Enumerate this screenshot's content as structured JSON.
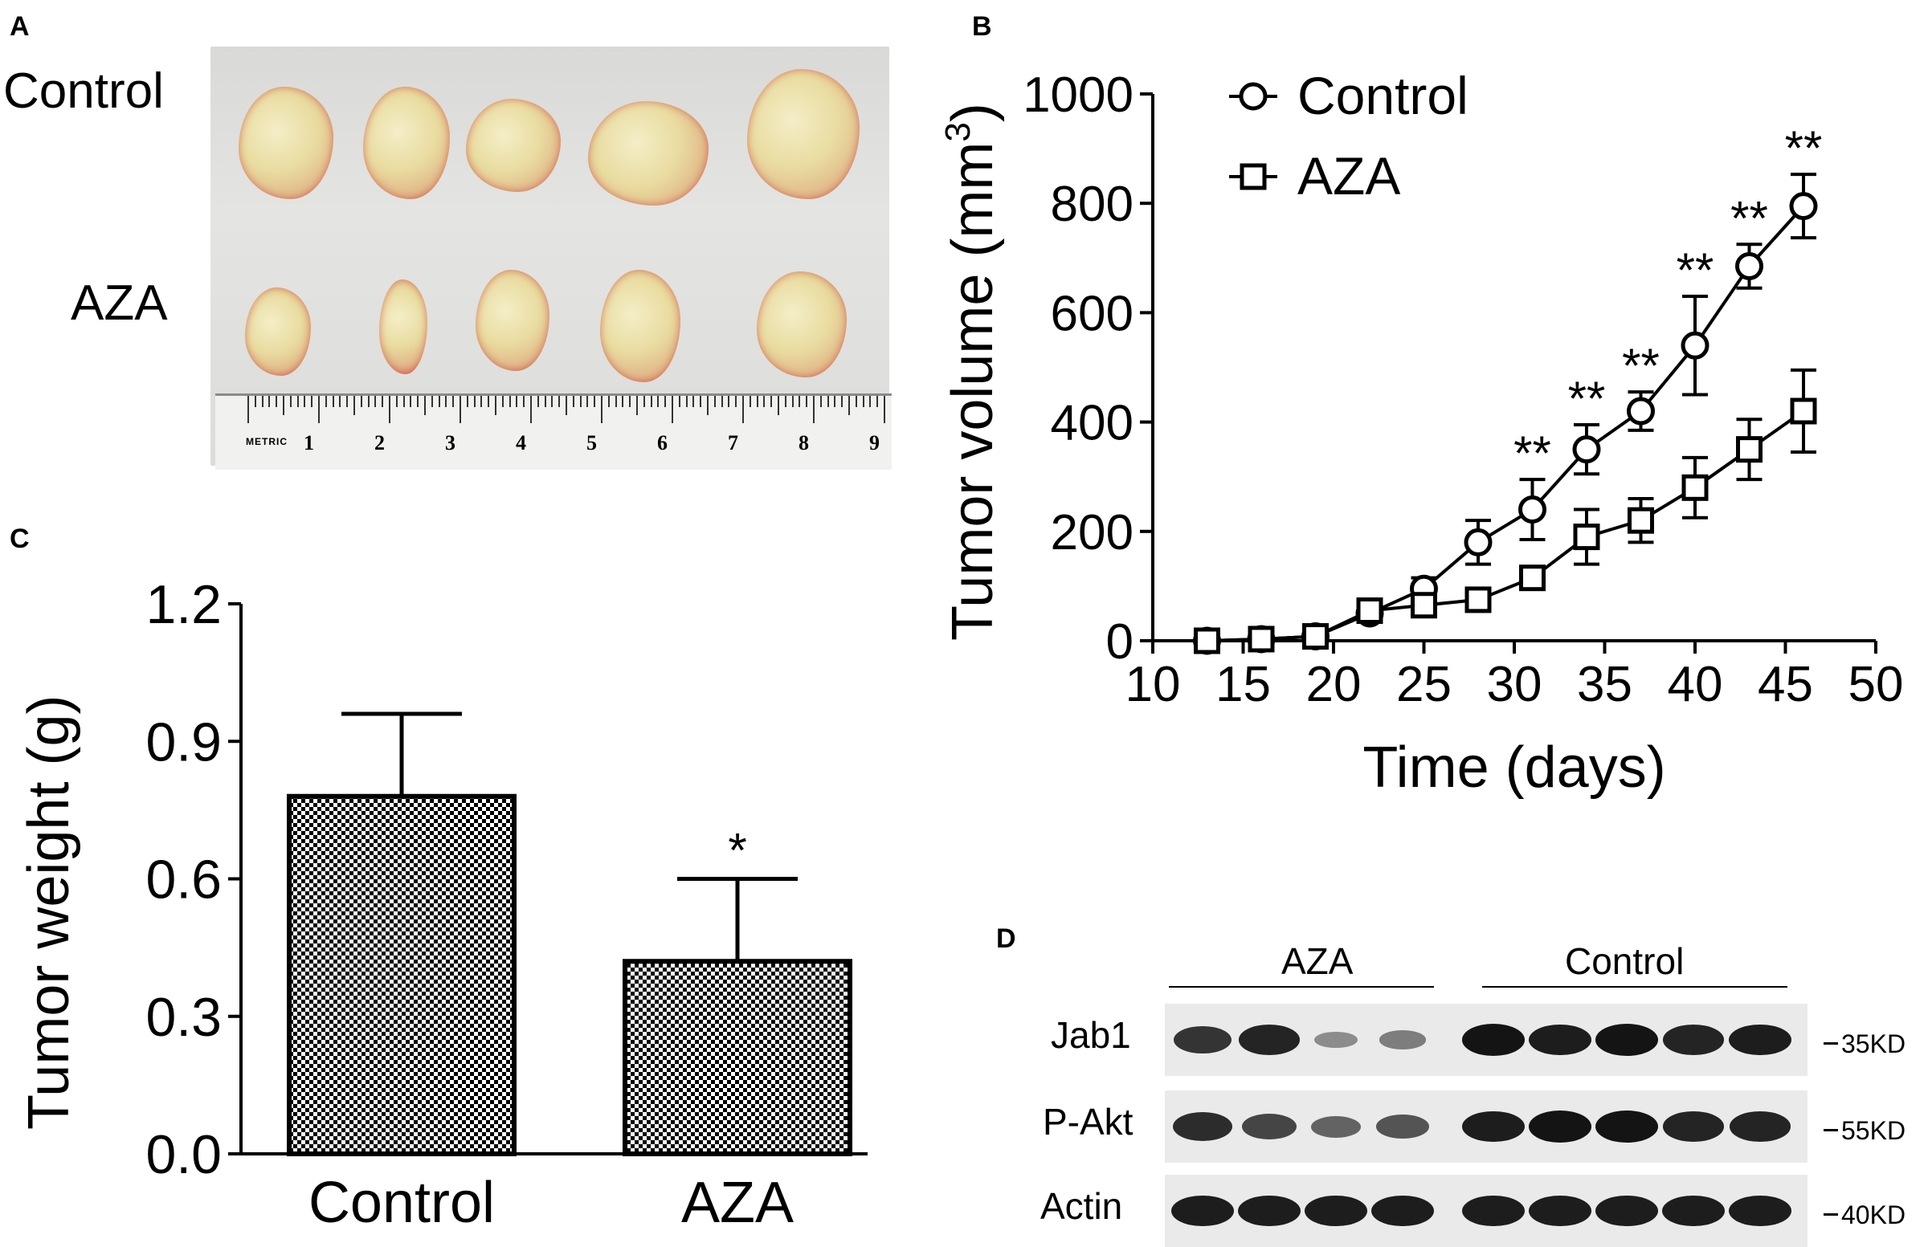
{
  "panels": {
    "a": "A",
    "b": "B",
    "c": "C",
    "d": "D"
  },
  "photo": {
    "row_labels": [
      "Control",
      "AZA"
    ],
    "ruler": {
      "brand": "METRIC",
      "numbers": [
        "1",
        "2",
        "3",
        "4",
        "5",
        "6",
        "7",
        "8",
        "9"
      ]
    }
  },
  "chart_data": [
    {
      "id": "B",
      "type": "line",
      "xlabel": "Time (days)",
      "ylabel": "Tumor volume (mm",
      "ylabel_superscript": "3",
      "ylabel_close": ")",
      "xlim": [
        10,
        50
      ],
      "ylim": [
        0,
        1000
      ],
      "xticks": [
        10,
        15,
        20,
        25,
        30,
        35,
        40,
        45,
        50
      ],
      "yticks": [
        0,
        200,
        400,
        600,
        800,
        1000
      ],
      "legend_position": "top-left",
      "series": [
        {
          "name": "Control",
          "marker": "circle",
          "x": [
            13,
            16,
            19,
            22,
            25,
            28,
            31,
            34,
            37,
            40,
            43,
            46
          ],
          "y": [
            0,
            3,
            8,
            50,
            95,
            180,
            240,
            350,
            420,
            540,
            685,
            795
          ],
          "err": [
            8,
            8,
            8,
            15,
            20,
            40,
            55,
            45,
            35,
            90,
            40,
            58
          ]
        },
        {
          "name": "AZA",
          "marker": "square",
          "x": [
            13,
            16,
            19,
            22,
            25,
            28,
            31,
            34,
            37,
            40,
            43,
            46
          ],
          "y": [
            0,
            3,
            8,
            55,
            65,
            75,
            115,
            190,
            220,
            280,
            350,
            420
          ],
          "err": [
            8,
            8,
            8,
            15,
            18,
            15,
            20,
            50,
            40,
            55,
            55,
            75
          ]
        }
      ],
      "annotations": {
        "x": [
          31,
          34,
          37,
          40,
          43,
          46
        ],
        "text": "**"
      }
    },
    {
      "id": "C",
      "type": "bar",
      "ylabel": "Tumor weight (g)",
      "categories": [
        "Control",
        "AZA"
      ],
      "values": [
        0.78,
        0.42
      ],
      "errors": [
        0.18,
        0.18
      ],
      "ylim": [
        0,
        1.2
      ],
      "yticks": [
        "0.0",
        "0.3",
        "0.6",
        "0.9",
        "1.2"
      ],
      "annotations": [
        {
          "category": "AZA",
          "text": "*"
        }
      ]
    }
  ],
  "blot": {
    "groups": [
      "AZA",
      "Control"
    ],
    "rows": [
      {
        "label": "Jab1",
        "marker": "35KD",
        "intensities": [
          0.8,
          0.9,
          0.25,
          0.35,
          1.0,
          0.95,
          1.0,
          0.9,
          0.95
        ]
      },
      {
        "label": "P-Akt",
        "marker": "55KD",
        "intensities": [
          0.85,
          0.7,
          0.5,
          0.6,
          0.95,
          1.0,
          1.0,
          0.9,
          0.9
        ]
      },
      {
        "label": "Actin",
        "marker": "40KD",
        "intensities": [
          0.95,
          0.95,
          0.95,
          0.95,
          0.95,
          0.95,
          0.95,
          0.95,
          0.95
        ]
      }
    ]
  }
}
